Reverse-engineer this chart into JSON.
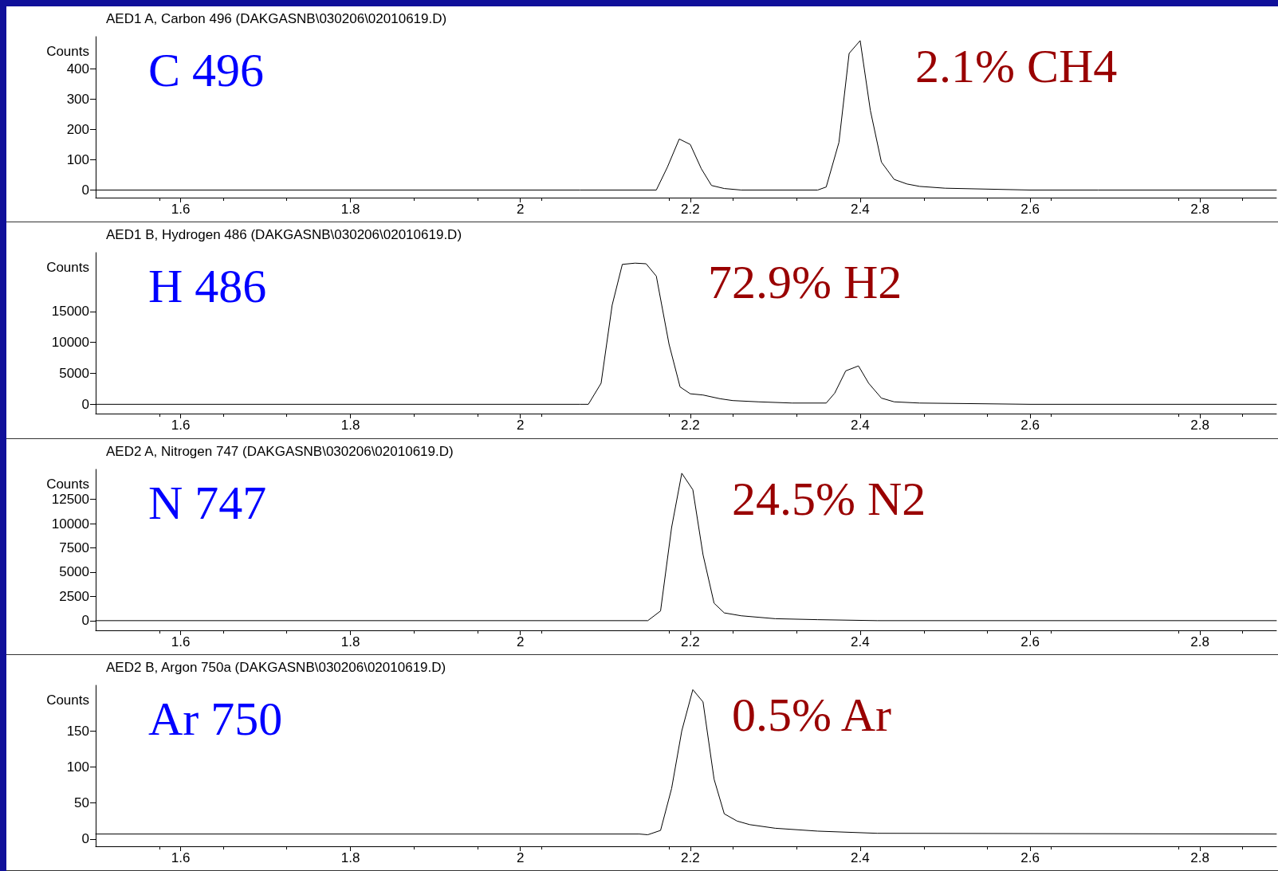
{
  "chart_data": [
    {
      "type": "line",
      "title": "AED1 A, Carbon 496 (DAKGASNB\\030206\\02010619.D)",
      "ylabel": "Counts",
      "annotations": [
        "C 496",
        "2.1% CH4"
      ],
      "xlim": [
        1.5,
        2.89
      ],
      "xticks": [
        1.6,
        1.8,
        2,
        2.2,
        2.4,
        2.6,
        2.8
      ],
      "ylim": [
        -25,
        505
      ],
      "yticks": [
        0,
        100,
        200,
        300,
        400
      ],
      "grid": false,
      "series": [
        {
          "color": "#000000",
          "x": [
            1.5,
            2.07,
            2.16,
            2.173,
            2.187,
            2.2,
            2.213,
            2.225,
            2.24,
            2.26,
            2.35,
            2.36,
            2.375,
            2.387,
            2.4,
            2.412,
            2.425,
            2.44,
            2.455,
            2.47,
            2.5,
            2.6,
            2.68,
            2.89
          ],
          "values": [
            0,
            0,
            0,
            75,
            168,
            150,
            70,
            15,
            5,
            0,
            0,
            10,
            157,
            450,
            492,
            262,
            92,
            35,
            20,
            12,
            6,
            0,
            0,
            0
          ]
        }
      ]
    },
    {
      "type": "line",
      "title": "AED1 B, Hydrogen 486 (DAKGASNB\\030206\\02010619.D)",
      "ylabel": "Counts",
      "annotations": [
        "H 486",
        "72.9% H2"
      ],
      "xlim": [
        1.5,
        2.89
      ],
      "xticks": [
        1.6,
        1.8,
        2,
        2.2,
        2.4,
        2.6,
        2.8
      ],
      "ylim": [
        -1500,
        24500
      ],
      "yticks": [
        0,
        5000,
        10000,
        15000
      ],
      "grid": false,
      "series": [
        {
          "color": "#000000",
          "x": [
            1.5,
            2.07,
            2.08,
            2.095,
            2.108,
            2.12,
            2.135,
            2.148,
            2.16,
            2.175,
            2.188,
            2.2,
            2.215,
            2.235,
            2.25,
            2.28,
            2.32,
            2.36,
            2.37,
            2.383,
            2.398,
            2.41,
            2.425,
            2.44,
            2.47,
            2.6,
            2.89
          ],
          "values": [
            0,
            0,
            0,
            3400,
            16000,
            22600,
            22800,
            22700,
            20700,
            9700,
            2800,
            1700,
            1500,
            900,
            600,
            400,
            200,
            200,
            1800,
            5400,
            6200,
            3400,
            1000,
            400,
            200,
            0,
            0
          ]
        }
      ]
    },
    {
      "type": "line",
      "title": "AED2 A, Nitrogen 747 (DAKGASNB\\030206\\02010619.D)",
      "ylabel": "Counts",
      "annotations": [
        "N 747",
        "24.5% N2"
      ],
      "xlim": [
        1.5,
        2.89
      ],
      "xticks": [
        1.6,
        1.8,
        2,
        2.2,
        2.4,
        2.6,
        2.8
      ],
      "ylim": [
        -1000,
        15600
      ],
      "yticks": [
        0,
        2500,
        5000,
        7500,
        10000,
        12500
      ],
      "grid": false,
      "series": [
        {
          "color": "#000000",
          "x": [
            1.5,
            2.15,
            2.165,
            2.178,
            2.19,
            2.203,
            2.215,
            2.228,
            2.24,
            2.26,
            2.3,
            2.35,
            2.42,
            2.89
          ],
          "values": [
            0,
            0,
            1000,
            9600,
            15200,
            13500,
            6800,
            1800,
            800,
            500,
            200,
            100,
            0,
            0
          ]
        }
      ]
    },
    {
      "type": "line",
      "title": "AED2 B, Argon 750a (DAKGASNB\\030206\\02010619.D)",
      "ylabel": "Counts",
      "annotations": [
        "Ar 750",
        "0.5% Ar"
      ],
      "xlim": [
        1.5,
        2.89
      ],
      "xticks": [
        1.6,
        1.8,
        2,
        2.2,
        2.4,
        2.6,
        2.8
      ],
      "ylim": [
        -10,
        213
      ],
      "yticks": [
        0,
        50,
        100,
        150
      ],
      "grid": false,
      "series": [
        {
          "color": "#000000",
          "x": [
            1.5,
            2.14,
            2.15,
            2.165,
            2.178,
            2.19,
            2.203,
            2.215,
            2.228,
            2.24,
            2.255,
            2.27,
            2.3,
            2.35,
            2.42,
            2.89
          ],
          "values": [
            7,
            7,
            6,
            12,
            70,
            150,
            207,
            190,
            83,
            35,
            25,
            20,
            15,
            11,
            8,
            7
          ]
        }
      ]
    }
  ]
}
